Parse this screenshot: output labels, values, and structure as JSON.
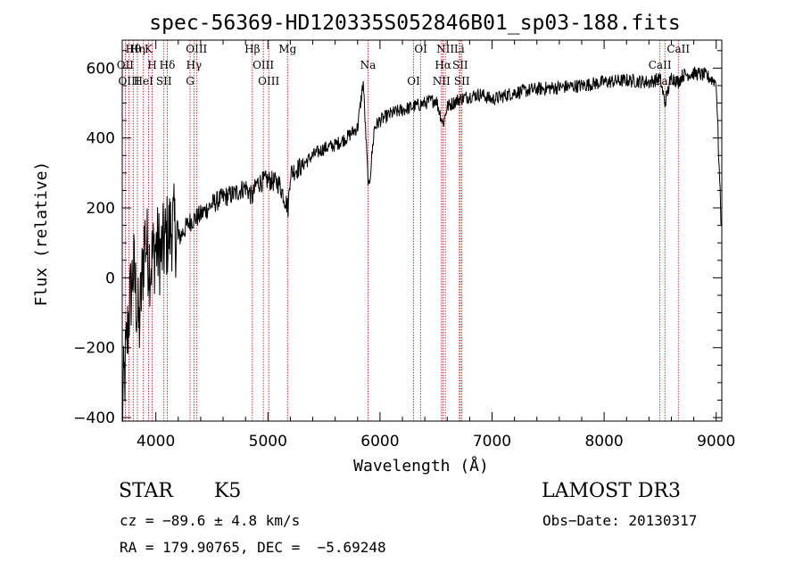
{
  "chart_data": {
    "type": "line",
    "title": "spec-56369-HD120335S052846B01_sp03-188.fits",
    "xlabel": "Wavelength (Å)",
    "ylabel": "Flux (relative)",
    "xlim": [
      3700,
      9050
    ],
    "ylim": [
      -410,
      680
    ],
    "xticks": [
      4000,
      5000,
      6000,
      7000,
      8000,
      9000
    ],
    "yticks": [
      -400,
      -200,
      0,
      200,
      400,
      600
    ],
    "grid": false,
    "series": [
      {
        "x": [
          3700,
          3760,
          3800,
          3850,
          3900,
          3950,
          4000,
          4050,
          4100,
          4150,
          4200,
          4300,
          4400,
          4500,
          4600,
          4700,
          4800,
          4860,
          4900,
          5000,
          5100,
          5180,
          5200,
          5300,
          5400,
          5500,
          5600,
          5700,
          5800,
          5850,
          5890,
          5900,
          5950,
          6000,
          6100,
          6200,
          6300,
          6400,
          6500,
          6563,
          6600,
          6700,
          6800,
          6900,
          7000,
          7200,
          7400,
          7600,
          7800,
          8000,
          8200,
          8400,
          8500,
          8542,
          8600,
          8662,
          8700,
          8800,
          8900,
          9000,
          9050
        ],
        "y": [
          -380,
          -100,
          30,
          -150,
          120,
          40,
          90,
          70,
          120,
          150,
          110,
          160,
          180,
          210,
          230,
          240,
          260,
          230,
          270,
          280,
          270,
          200,
          300,
          320,
          350,
          370,
          380,
          400,
          430,
          560,
          300,
          250,
          430,
          450,
          470,
          480,
          490,
          500,
          510,
          440,
          490,
          510,
          520,
          525,
          510,
          530,
          540,
          545,
          550,
          560,
          565,
          560,
          570,
          500,
          575,
          560,
          580,
          585,
          580,
          560,
          100
        ]
      }
    ],
    "spectral_lines": [
      {
        "label": "Hθ",
        "x": 3798
      },
      {
        "label": "OII",
        "x": 3727
      },
      {
        "label": "OIII",
        "x": 3760
      },
      {
        "label": "K",
        "x": 3934
      },
      {
        "label": "H",
        "x": 3968
      },
      {
        "label": "HeI",
        "x": 3889
      },
      {
        "label": "Hη",
        "x": 3835
      },
      {
        "label": "Hδ",
        "x": 4102
      },
      {
        "label": "SII",
        "x": 4072
      },
      {
        "label": "OIII",
        "x": 4363
      },
      {
        "label": "Hγ",
        "x": 4340
      },
      {
        "label": "G",
        "x": 4305
      },
      {
        "label": "Hβ",
        "x": 4861
      },
      {
        "label": "OIII",
        "x": 4959
      },
      {
        "label": "OIII",
        "x": 5007
      },
      {
        "label": "Mg",
        "x": 5175
      },
      {
        "label": "Na",
        "x": 5893
      },
      {
        "label": "OI",
        "x": 6300
      },
      {
        "label": "OI",
        "x": 6364
      },
      {
        "label": "Hα",
        "x": 6563
      },
      {
        "label": "NII",
        "x": 6548
      },
      {
        "label": "NII",
        "x": 6583
      },
      {
        "label": "SII",
        "x": 6716
      },
      {
        "label": "SII",
        "x": 6731
      },
      {
        "label": "Li",
        "x": 6708
      },
      {
        "label": "CaII",
        "x": 8498
      },
      {
        "label": "CaII",
        "x": 8542
      },
      {
        "label": "CaII",
        "x": 8662
      }
    ]
  },
  "info": {
    "object_class": "STAR",
    "subclass": "K5",
    "survey": "LAMOST DR3",
    "cz": "cz = −89.6 ± 4.8 km/s",
    "obs_date": "Obs−Date: 20130317",
    "radec": "RA = 179.90765, DEC =  −5.69248"
  },
  "colors": {
    "spectrum": "#000000",
    "lines": "#cc0000"
  }
}
